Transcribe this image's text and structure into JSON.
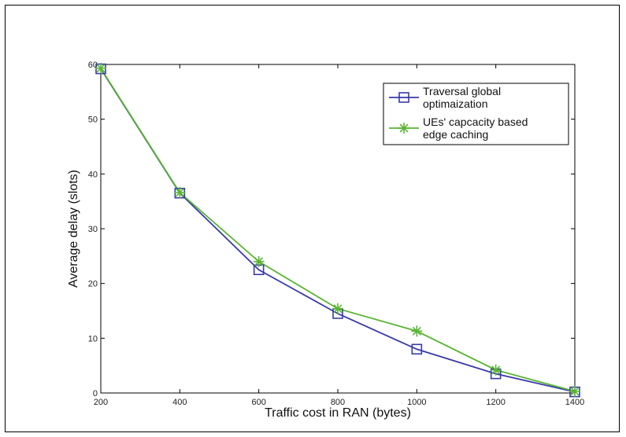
{
  "chart_data": {
    "type": "line",
    "title": "",
    "xlabel": "Traffic cost in RAN (bytes)",
    "ylabel": "Average delay (slots)",
    "x": [
      200,
      400,
      600,
      800,
      1000,
      1200,
      1400
    ],
    "x_tick_labels": [
      "200",
      "400",
      "600",
      "800",
      "1000",
      "1200",
      "1400"
    ],
    "y_ticks": [
      0,
      10,
      20,
      30,
      40,
      50,
      60
    ],
    "xlim": [
      200,
      1400
    ],
    "ylim": [
      0,
      60
    ],
    "grid": false,
    "legend_position": "top-right",
    "series": [
      {
        "name": "Traversal global optimaization",
        "legend_lines": [
          "Traversal global",
          "optimaization"
        ],
        "marker": "square",
        "color": "#3a3aa8",
        "values": [
          59.2,
          36.5,
          22.5,
          14.5,
          8.0,
          3.5,
          0.2
        ]
      },
      {
        "name": "UEs' capcacity based edge caching",
        "legend_lines": [
          "UEs' capcacity based",
          "edge caching"
        ],
        "marker": "star",
        "color": "#5ab534",
        "values": [
          59.3,
          36.6,
          24.0,
          15.4,
          11.3,
          4.2,
          0.3
        ]
      }
    ]
  }
}
